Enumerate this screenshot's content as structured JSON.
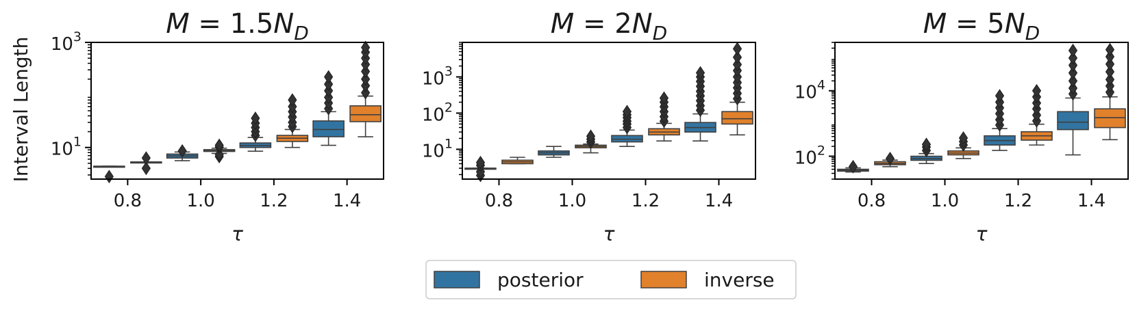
{
  "figure": {
    "ylabel": "Interval Length",
    "legend": {
      "placement": "bottom-center",
      "entries": [
        {
          "label": "posterior",
          "color": "#3274a1"
        },
        {
          "label": "inverse",
          "color": "#e1812c"
        }
      ]
    }
  },
  "chart_data": [
    {
      "type": "boxplot",
      "title": "M = 1.5N_D",
      "title_parts": {
        "lhs": "M",
        "coef": "1.5",
        "var": "N",
        "sub": "D"
      },
      "xlabel": "τ",
      "ylabel": "Interval Length",
      "yscale": "log",
      "ylim": [
        2.5,
        1000
      ],
      "yticks": [
        {
          "value": 10,
          "base": "10",
          "exp": "1"
        },
        {
          "value": 1000,
          "base": "10",
          "exp": "3"
        }
      ],
      "categories": [
        "0.8",
        "1.0",
        "1.2",
        "1.4"
      ],
      "series": [
        {
          "name": "posterior",
          "color": "#3274a1",
          "boxes": [
            {
              "min": 4.4,
              "q1": 4.4,
              "median": 4.4,
              "q3": 4.4,
              "max": 4.4,
              "outliers": [
                2.8
              ]
            },
            {
              "min": 5.6,
              "q1": 6.3,
              "median": 6.9,
              "q3": 7.5,
              "max": 8.2,
              "outliers": [
                8.6
              ]
            },
            {
              "min": 8.5,
              "q1": 10.0,
              "median": 10.9,
              "q3": 12.2,
              "max": 15.5,
              "outliers": [
                17,
                20,
                24,
                29,
                36
              ]
            },
            {
              "min": 11,
              "q1": 16,
              "median": 22,
              "q3": 32,
              "max": 48,
              "outliers": [
                55,
                70,
                90,
                120,
                160,
                220
              ]
            }
          ]
        },
        {
          "name": "inverse",
          "color": "#e1812c",
          "boxes": [
            {
              "min": 5.3,
              "q1": 5.3,
              "median": 5.3,
              "q3": 5.3,
              "max": 5.3,
              "outliers": [
                4.0,
                6.3
              ]
            },
            {
              "min": 7.7,
              "q1": 8.4,
              "median": 8.7,
              "q3": 9.1,
              "max": 9.7,
              "outliers": [
                6.7,
                7.3,
                10.2,
                11.0
              ]
            },
            {
              "min": 10,
              "q1": 13,
              "median": 15,
              "q3": 17,
              "max": 22,
              "outliers": [
                25,
                30,
                38,
                48,
                60,
                80
              ]
            },
            {
              "min": 16,
              "q1": 31,
              "median": 42,
              "q3": 62,
              "max": 95,
              "outliers": [
                110,
                150,
                200,
                280,
                380,
                500,
                650,
                800
              ]
            }
          ]
        }
      ]
    },
    {
      "type": "boxplot",
      "title": "M = 2N_D",
      "title_parts": {
        "lhs": "M",
        "coef": "2",
        "var": "N",
        "sub": "D"
      },
      "xlabel": "τ",
      "ylabel": "",
      "yscale": "log",
      "ylim": [
        1.5,
        9000
      ],
      "yticks": [
        {
          "value": 10,
          "base": "10",
          "exp": "1"
        },
        {
          "value": 100,
          "base": "10",
          "exp": "2"
        },
        {
          "value": 1000,
          "base": "10",
          "exp": "3"
        }
      ],
      "categories": [
        "0.8",
        "1.0",
        "1.2",
        "1.4"
      ],
      "series": [
        {
          "name": "posterior",
          "color": "#3274a1",
          "boxes": [
            {
              "min": 3.0,
              "q1": 3.0,
              "median": 3.0,
              "q3": 3.0,
              "max": 3.0,
              "outliers": [
                1.9,
                2.4,
                3.6,
                4.3
              ]
            },
            {
              "min": 6.0,
              "q1": 7.0,
              "median": 8.0,
              "q3": 9.0,
              "max": 12.0,
              "outliers": []
            },
            {
              "min": 12,
              "q1": 16,
              "median": 19,
              "q3": 24,
              "max": 34,
              "outliers": [
                40,
                50,
                60,
                75,
                90,
                110
              ]
            },
            {
              "min": 17,
              "q1": 30,
              "median": 40,
              "q3": 55,
              "max": 95,
              "outliers": [
                120,
                160,
                220,
                300,
                400,
                550,
                750,
                1000,
                1300
              ]
            }
          ]
        },
        {
          "name": "inverse",
          "color": "#e1812c",
          "boxes": [
            {
              "min": 4.0,
              "q1": 4.0,
              "median": 4.5,
              "q3": 5.0,
              "max": 6.0,
              "outliers": []
            },
            {
              "min": 8.0,
              "q1": 11,
              "median": 12,
              "q3": 13,
              "max": 14,
              "outliers": [
                16,
                19,
                23
              ]
            },
            {
              "min": 17,
              "q1": 25,
              "median": 30,
              "q3": 37,
              "max": 52,
              "outliers": [
                60,
                80,
                110,
                150,
                200,
                260
              ]
            },
            {
              "min": 25,
              "q1": 50,
              "median": 70,
              "q3": 110,
              "max": 200,
              "outliers": [
                250,
                350,
                500,
                700,
                1000,
                1500,
                2200,
                3500,
                6000
              ]
            }
          ]
        }
      ]
    },
    {
      "type": "boxplot",
      "title": "M = 5N_D",
      "title_parts": {
        "lhs": "M",
        "coef": "5",
        "var": "N",
        "sub": "D"
      },
      "xlabel": "τ",
      "ylabel": "",
      "yscale": "log",
      "ylim": [
        20,
        300000
      ],
      "yticks": [
        {
          "value": 100,
          "base": "10",
          "exp": "2"
        },
        {
          "value": 10000,
          "base": "10",
          "exp": "4"
        }
      ],
      "categories": [
        "0.8",
        "1.0",
        "1.2",
        "1.4"
      ],
      "series": [
        {
          "name": "posterior",
          "color": "#3274a1",
          "boxes": [
            {
              "min": 33,
              "q1": 35,
              "median": 37,
              "q3": 40,
              "max": 44,
              "outliers": [
                48
              ]
            },
            {
              "min": 60,
              "q1": 75,
              "median": 85,
              "q3": 100,
              "max": 120,
              "outliers": [
                150,
                190,
                230
              ]
            },
            {
              "min": 150,
              "q1": 220,
              "median": 300,
              "q3": 420,
              "max": 700,
              "outliers": [
                900,
                1300,
                2000,
                3000,
                4500,
                7000
              ]
            },
            {
              "min": 110,
              "q1": 650,
              "median": 1100,
              "q3": 2300,
              "max": 6000,
              "outliers": [
                8000,
                12000,
                20000,
                35000,
                60000,
                100000,
                170000
              ]
            }
          ]
        },
        {
          "name": "inverse",
          "color": "#e1812c",
          "boxes": [
            {
              "min": 48,
              "q1": 55,
              "median": 60,
              "q3": 68,
              "max": 76,
              "outliers": [
                85
              ]
            },
            {
              "min": 85,
              "q1": 110,
              "median": 125,
              "q3": 145,
              "max": 180,
              "outliers": [
                220,
                280,
                360
              ]
            },
            {
              "min": 220,
              "q1": 310,
              "median": 420,
              "q3": 560,
              "max": 950,
              "outliers": [
                1200,
                1800,
                2800,
                4200,
                6500,
                10000
              ]
            },
            {
              "min": 320,
              "q1": 750,
              "median": 1500,
              "q3": 2800,
              "max": 6500,
              "outliers": [
                9000,
                14000,
                22000,
                38000,
                65000,
                110000,
                180000
              ]
            }
          ]
        }
      ]
    }
  ]
}
